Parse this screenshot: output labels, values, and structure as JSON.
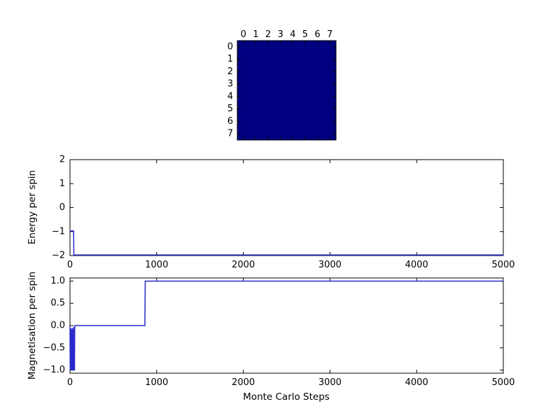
{
  "figure": {
    "background": "#ffffff"
  },
  "heatmap": {
    "col_tick_labels": [
      "0",
      "1",
      "2",
      "3",
      "4",
      "5",
      "6",
      "7"
    ],
    "row_tick_labels": [
      "0",
      "1",
      "2",
      "3",
      "4",
      "5",
      "6",
      "7"
    ],
    "cell_color": "#000080"
  },
  "energy_plot": {
    "ylabel": "Energy per spin",
    "x_tick_labels": [
      "0",
      "1000",
      "2000",
      "3000",
      "4000",
      "5000"
    ],
    "y_tick_labels": [
      "−2",
      "−1",
      "0",
      "1",
      "2"
    ]
  },
  "mag_plot": {
    "ylabel": "Magnetisation per spin",
    "xlabel": "Monte Carlo Steps",
    "x_tick_labels": [
      "0",
      "1000",
      "2000",
      "3000",
      "4000",
      "5000"
    ],
    "y_tick_labels": [
      "−1.0",
      "−0.5",
      "0.0",
      "0.5",
      "1.0"
    ]
  },
  "chart_data": [
    {
      "type": "heatmap",
      "title": "",
      "rows": 8,
      "cols": 8,
      "x_ticks": [
        0,
        1,
        2,
        3,
        4,
        5,
        6,
        7
      ],
      "y_ticks": [
        0,
        1,
        2,
        3,
        4,
        5,
        6,
        7
      ],
      "uniform_grid": true,
      "note": "all 64 cells identical color (fully aligned spin lattice)",
      "cell_color": "#000080"
    },
    {
      "type": "line",
      "ylabel": "Energy per spin",
      "xlim": [
        0,
        5000
      ],
      "ylim": [
        -2,
        2
      ],
      "x_ticks": [
        0,
        1000,
        2000,
        3000,
        4000,
        5000
      ],
      "x_tick_labels": [
        "0",
        "1000",
        "2000",
        "3000",
        "4000",
        "5000"
      ],
      "y_ticks": [
        -2,
        -1,
        0,
        1,
        2
      ],
      "y_tick_labels": [
        "−2",
        "−1",
        "0",
        "1",
        "2"
      ],
      "grid": false,
      "line_color": "#2828cc",
      "points": [
        [
          0,
          -1
        ],
        [
          42,
          -1
        ],
        [
          44,
          -2
        ],
        [
          5000,
          -2
        ]
      ]
    },
    {
      "type": "line",
      "ylabel": "Magnetisation per spin",
      "xlabel": "Monte Carlo Steps",
      "xlim": [
        0,
        5000
      ],
      "ylim": [
        -1.07,
        1.07
      ],
      "x_ticks": [
        0,
        1000,
        2000,
        3000,
        4000,
        5000
      ],
      "x_tick_labels": [
        "0",
        "1000",
        "2000",
        "3000",
        "4000",
        "5000"
      ],
      "y_ticks": [
        -1.0,
        -0.5,
        0.0,
        0.5,
        1.0
      ],
      "y_tick_labels": [
        "−1.0",
        "−0.5",
        "0.0",
        "0.5",
        "1.0"
      ],
      "grid": false,
      "line_color": "#2828cc",
      "points": [
        [
          0,
          0
        ],
        [
          2,
          -1
        ],
        [
          5,
          -0.06
        ],
        [
          8,
          -1
        ],
        [
          11,
          -0.97
        ],
        [
          14,
          -0.06
        ],
        [
          17,
          -1
        ],
        [
          20,
          -0.09
        ],
        [
          23,
          -1
        ],
        [
          27,
          -0.97
        ],
        [
          30,
          -0.06
        ],
        [
          33,
          -1
        ],
        [
          38,
          -1
        ],
        [
          41,
          -0.03
        ],
        [
          44,
          -1
        ],
        [
          52,
          -1
        ],
        [
          55,
          0
        ],
        [
          864,
          0
        ],
        [
          868,
          1
        ],
        [
          5000,
          1
        ]
      ]
    }
  ]
}
